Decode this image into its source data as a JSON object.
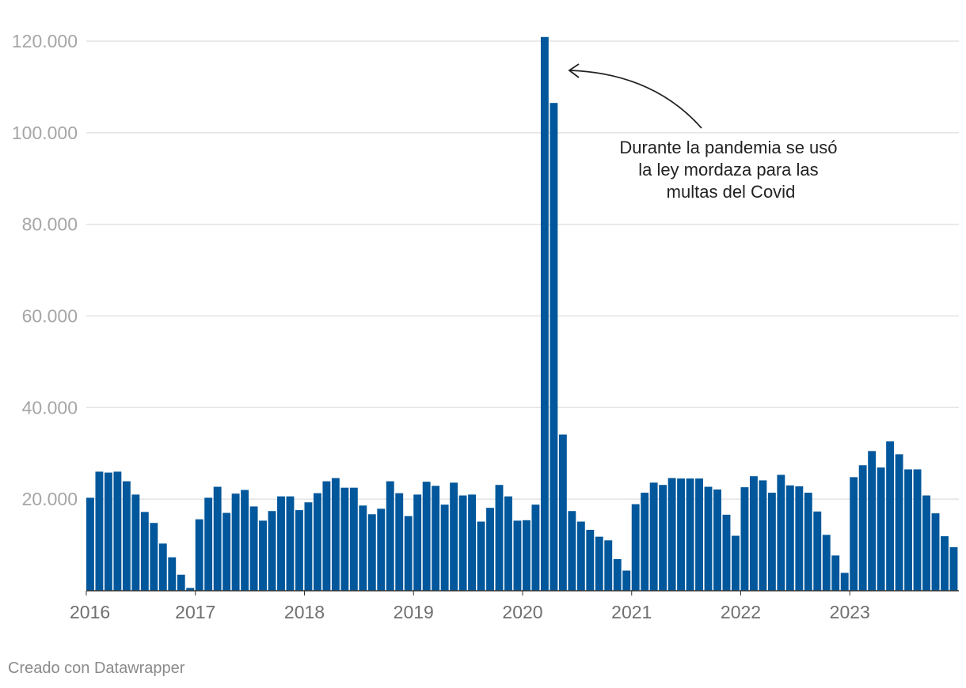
{
  "chart_data": {
    "type": "bar",
    "start_year": 2016,
    "x_tick_labels": [
      "2016",
      "2017",
      "2018",
      "2019",
      "2020",
      "2021",
      "2022",
      "2023"
    ],
    "y_tick_labels": [
      "20.000",
      "40.000",
      "60.000",
      "80.000",
      "100.000",
      "120.000"
    ],
    "y_ticks": [
      20000,
      40000,
      60000,
      80000,
      100000,
      120000
    ],
    "ylim": [
      0,
      120000
    ],
    "grid": true,
    "bar_color": "#01579b",
    "values": [
      20300,
      26000,
      25800,
      26000,
      23900,
      21000,
      17200,
      14800,
      10300,
      7300,
      3500,
      600,
      15600,
      20300,
      22700,
      17000,
      21200,
      22000,
      18400,
      15300,
      17400,
      20600,
      20600,
      17600,
      19300,
      21300,
      23900,
      24600,
      22500,
      22500,
      18600,
      16700,
      17900,
      23900,
      21300,
      16300,
      21000,
      23800,
      22900,
      18800,
      23600,
      20800,
      21000,
      15100,
      18100,
      23100,
      20600,
      15300,
      15400,
      18800,
      120900,
      106500,
      34100,
      17400,
      15100,
      13300,
      11800,
      11000,
      6900,
      4400,
      18900,
      21400,
      23600,
      23100,
      24600,
      24500,
      24500,
      24500,
      22700,
      22100,
      16600,
      12000,
      22600,
      25000,
      24100,
      21400,
      25300,
      23000,
      22800,
      21400,
      17300,
      12200,
      7700,
      3900,
      24800,
      27400,
      30500,
      26900,
      32600,
      29800,
      26500,
      26500,
      20800,
      16900,
      11900,
      9500
    ],
    "annotation": {
      "lines": [
        "Durante la pandemia se usó",
        "la ley mordaza para las",
        "multas del Covid"
      ]
    }
  },
  "footer": {
    "credit": "Creado con Datawrapper"
  }
}
